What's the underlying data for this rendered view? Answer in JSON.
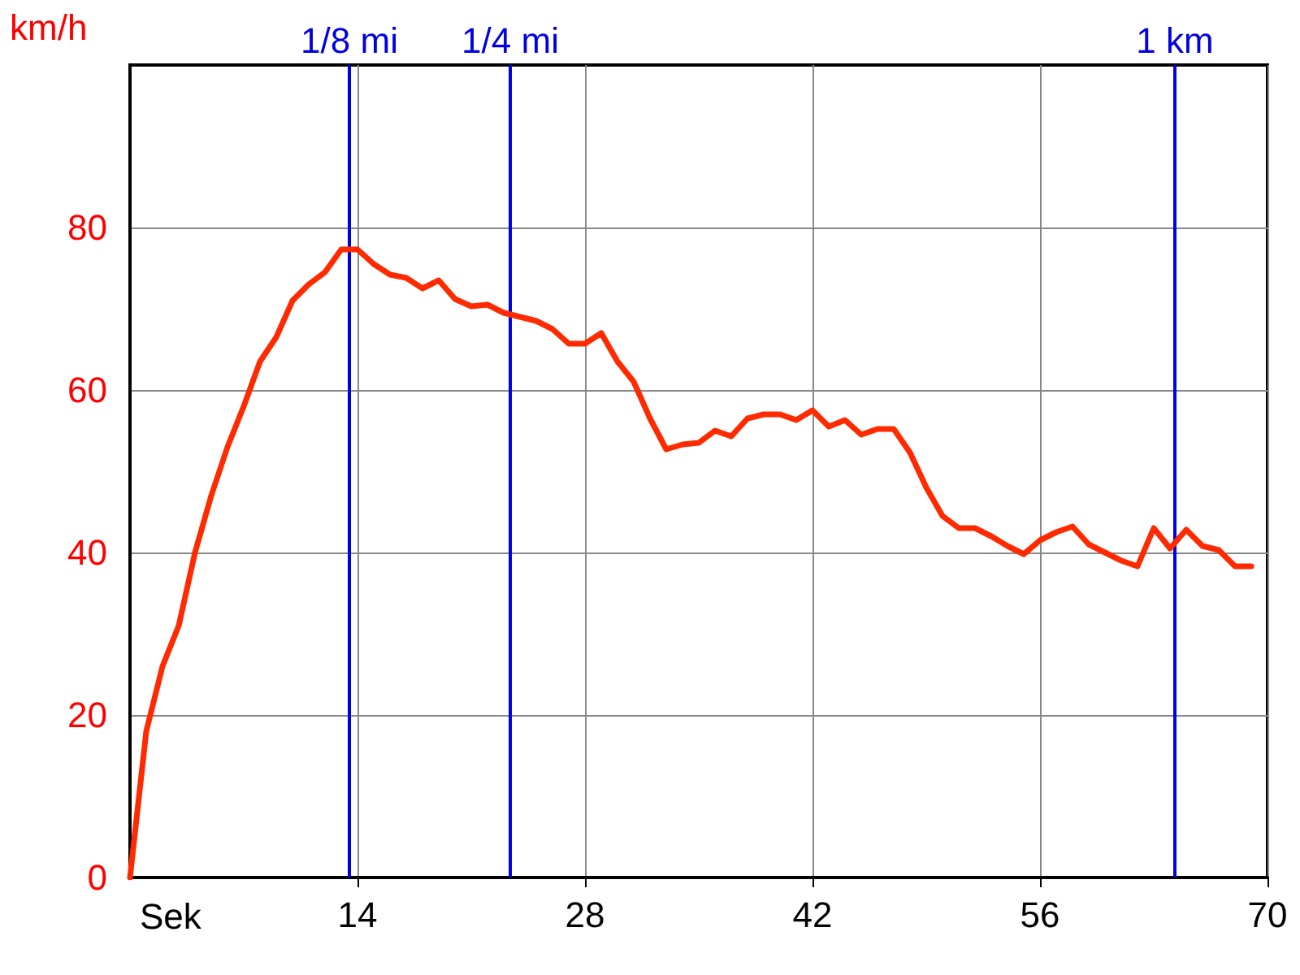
{
  "chart_data": {
    "type": "line",
    "xlabel": "Sek",
    "ylabel": "km/h",
    "x": [
      0,
      1,
      2,
      3,
      4,
      5,
      6,
      7,
      8,
      9,
      10,
      11,
      12,
      13,
      14,
      15,
      16,
      17,
      18,
      19,
      20,
      21,
      22,
      23,
      24,
      25,
      26,
      27,
      28,
      29,
      30,
      31,
      32,
      33,
      34,
      35,
      36,
      37,
      38,
      39,
      40,
      41,
      42,
      43,
      44,
      45,
      46,
      47,
      48,
      49,
      50,
      51,
      52,
      53,
      54,
      55,
      56,
      57,
      58,
      59,
      60,
      61,
      62,
      63,
      64,
      65,
      66,
      67,
      68,
      69
    ],
    "series": [
      {
        "color": "#ff2a00",
        "values": [
          0,
          18,
          26,
          31,
          40,
          47,
          53,
          58,
          63.5,
          66.5,
          71,
          73,
          74.5,
          77.3,
          77.3,
          75.5,
          74.2,
          73.8,
          72.5,
          73.5,
          71.2,
          70.3,
          70.5,
          69.5,
          69,
          68.5,
          67.5,
          65.7,
          65.7,
          67,
          63.5,
          61,
          56.5,
          52.7,
          53.3,
          53.5,
          55,
          54.3,
          56.5,
          57,
          57,
          56.3,
          57.5,
          55.5,
          56.3,
          54.5,
          55.2,
          55.2,
          52.3,
          48,
          44.5,
          43,
          43,
          42,
          40.8,
          39.8,
          41.5,
          42.5,
          43.2,
          41,
          40,
          39,
          38.3,
          43,
          40.5,
          42.8,
          40.8,
          40.3,
          38.3,
          38.3
        ]
      }
    ],
    "xlim": [
      0,
      70
    ],
    "xticks": [
      14,
      28,
      42,
      56,
      70
    ],
    "ylim": [
      0,
      100
    ],
    "yticks": [
      0,
      20,
      40,
      60,
      80
    ],
    "ref_lines": [
      {
        "axis": "x",
        "value": 13.5,
        "label": "1/8 mi",
        "color": "#0000e0"
      },
      {
        "axis": "x",
        "value": 23.4,
        "label": "1/4 mi",
        "color": "#0000e0"
      },
      {
        "axis": "x",
        "value": 64.3,
        "label": "1 km",
        "color": "#0000e0"
      }
    ],
    "grid": true,
    "marker": "none",
    "line_style": "solid"
  }
}
